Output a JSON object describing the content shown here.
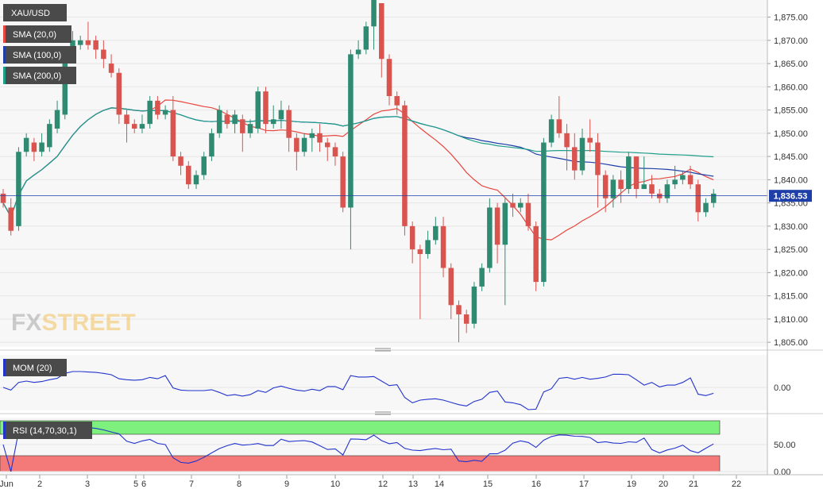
{
  "instrument": "XAU/USD",
  "brand": {
    "fx": "FX",
    "street": "STREET"
  },
  "legend": [
    {
      "label": "SMA (20,0)",
      "color": "#e8473f"
    },
    {
      "label": "SMA (100,0)",
      "color": "#1f3fa8"
    },
    {
      "label": "SMA (200,0)",
      "color": "#1f9e8a"
    }
  ],
  "last_price_label": "1,836.53",
  "colors": {
    "up": "#2e8b72",
    "down": "#d9534f",
    "grid": "#e6e6e6",
    "panel": "#f7f7f7"
  },
  "chart_data": [
    {
      "type": "candlestick",
      "title": "XAU/USD",
      "y_ticks": [
        "1,805.00",
        "1,810.00",
        "1,815.00",
        "1,820.00",
        "1,825.00",
        "1,830.00",
        "1,835.00",
        "1,840.00",
        "1,845.00",
        "1,850.00",
        "1,855.00",
        "1,860.00",
        "1,865.00",
        "1,870.00",
        "1,875.00"
      ],
      "ylim": [
        1804,
        1878
      ],
      "x_tick_labels": [
        "Jun",
        "2",
        "3",
        "5",
        "6",
        "7",
        "8",
        "9",
        "10",
        "12",
        "13",
        "14",
        "15",
        "16",
        "17",
        "19",
        "20",
        "21",
        "22"
      ],
      "last_price": 1836.53,
      "candles": [
        [
          1837,
          1835,
          1838,
          1834
        ],
        [
          1834,
          1829,
          1836,
          1828
        ],
        [
          1830,
          1846,
          1847,
          1829
        ],
        [
          1846,
          1849,
          1850,
          1845
        ],
        [
          1848,
          1846,
          1849,
          1844
        ],
        [
          1846,
          1848,
          1850,
          1845
        ],
        [
          1847,
          1852,
          1853,
          1846
        ],
        [
          1851,
          1855,
          1857,
          1850
        ],
        [
          1854,
          1866,
          1868,
          1853
        ],
        [
          1866,
          1870,
          1872,
          1865
        ],
        [
          1869,
          1870,
          1871,
          1868
        ],
        [
          1870,
          1869,
          1874,
          1868
        ],
        [
          1870,
          1868,
          1871,
          1866
        ],
        [
          1868,
          1866,
          1870,
          1864
        ],
        [
          1865,
          1863,
          1867,
          1862
        ],
        [
          1863,
          1854,
          1864,
          1852
        ],
        [
          1854,
          1852,
          1855,
          1848
        ],
        [
          1852,
          1851,
          1853,
          1850
        ],
        [
          1851,
          1852,
          1854,
          1850
        ],
        [
          1852,
          1857,
          1858,
          1851
        ],
        [
          1857,
          1854,
          1858,
          1853
        ],
        [
          1854,
          1855,
          1856,
          1853
        ],
        [
          1855,
          1845,
          1858,
          1844
        ],
        [
          1845,
          1843,
          1846,
          1841
        ],
        [
          1843,
          1839,
          1844,
          1838
        ],
        [
          1839,
          1841,
          1842,
          1838
        ],
        [
          1841,
          1845,
          1846,
          1840
        ],
        [
          1845,
          1850,
          1851,
          1844
        ],
        [
          1850,
          1855,
          1856,
          1849
        ],
        [
          1854,
          1852,
          1855,
          1851
        ],
        [
          1852,
          1854,
          1855,
          1850
        ],
        [
          1853,
          1850,
          1854,
          1846
        ],
        [
          1850,
          1852,
          1853,
          1849
        ],
        [
          1851,
          1859,
          1860,
          1850
        ],
        [
          1859,
          1852,
          1860,
          1850
        ],
        [
          1852,
          1853,
          1856,
          1851
        ],
        [
          1853,
          1855,
          1857,
          1851
        ],
        [
          1855,
          1849,
          1856,
          1846
        ],
        [
          1849,
          1846,
          1850,
          1842
        ],
        [
          1846,
          1849,
          1850,
          1845
        ],
        [
          1849,
          1850,
          1851,
          1846
        ],
        [
          1850,
          1848,
          1852,
          1846
        ],
        [
          1848,
          1847,
          1849,
          1844
        ],
        [
          1847,
          1845,
          1848,
          1843
        ],
        [
          1845,
          1834,
          1846,
          1833
        ],
        [
          1834,
          1867,
          1868,
          1825
        ],
        [
          1867,
          1868,
          1870,
          1866
        ],
        [
          1868,
          1873,
          1874,
          1867
        ],
        [
          1873,
          1879,
          1879,
          1868
        ],
        [
          1878,
          1866,
          1878,
          1862
        ],
        [
          1866,
          1858,
          1867,
          1856
        ],
        [
          1858,
          1856,
          1859,
          1854
        ],
        [
          1856,
          1830,
          1857,
          1828
        ],
        [
          1830,
          1825,
          1831,
          1822
        ],
        [
          1825,
          1824,
          1826,
          1810
        ],
        [
          1824,
          1827,
          1829,
          1823
        ],
        [
          1827,
          1830,
          1832,
          1826
        ],
        [
          1830,
          1821,
          1832,
          1819
        ],
        [
          1821,
          1813,
          1822,
          1810
        ],
        [
          1813,
          1811,
          1814,
          1805
        ],
        [
          1811,
          1809,
          1812,
          1807
        ],
        [
          1809,
          1817,
          1818,
          1808
        ],
        [
          1817,
          1821,
          1822,
          1816
        ],
        [
          1821,
          1834,
          1836,
          1820
        ],
        [
          1834,
          1826,
          1835,
          1822
        ],
        [
          1826,
          1835,
          1836,
          1813
        ],
        [
          1835,
          1834,
          1837,
          1832
        ],
        [
          1834,
          1835,
          1836,
          1833
        ],
        [
          1835,
          1830,
          1837,
          1829
        ],
        [
          1830,
          1818,
          1831,
          1816
        ],
        [
          1818,
          1848,
          1849,
          1817
        ],
        [
          1848,
          1853,
          1854,
          1847
        ],
        [
          1853,
          1850,
          1858,
          1849
        ],
        [
          1850,
          1847,
          1852,
          1842
        ],
        [
          1847,
          1842,
          1850,
          1840
        ],
        [
          1842,
          1849,
          1851,
          1841
        ],
        [
          1849,
          1848,
          1853,
          1846
        ],
        [
          1848,
          1841,
          1850,
          1834
        ],
        [
          1841,
          1836,
          1842,
          1833
        ],
        [
          1836,
          1840,
          1841,
          1834
        ],
        [
          1840,
          1838,
          1842,
          1835
        ],
        [
          1838,
          1845,
          1846,
          1837
        ],
        [
          1845,
          1838,
          1845,
          1836
        ],
        [
          1838,
          1839,
          1845,
          1838
        ],
        [
          1839,
          1837,
          1841,
          1836
        ],
        [
          1837,
          1836,
          1838,
          1835
        ],
        [
          1836,
          1839,
          1840,
          1835
        ],
        [
          1839,
          1840,
          1843,
          1838
        ],
        [
          1840,
          1841,
          1842,
          1839
        ],
        [
          1841,
          1839,
          1843,
          1838
        ],
        [
          1839,
          1833,
          1840,
          1831
        ],
        [
          1833,
          1835,
          1836,
          1832
        ],
        [
          1835,
          1837,
          1838,
          1834
        ]
      ]
    },
    {
      "type": "line",
      "title": "MOM (20)",
      "y_ticks": [
        "0.00"
      ],
      "ylim": [
        -1,
        1
      ]
    },
    {
      "type": "line",
      "title": "RSI (14,70,30,1)",
      "y_ticks": [
        "0.00",
        "50.00"
      ],
      "ylim": [
        0,
        100
      ]
    }
  ]
}
